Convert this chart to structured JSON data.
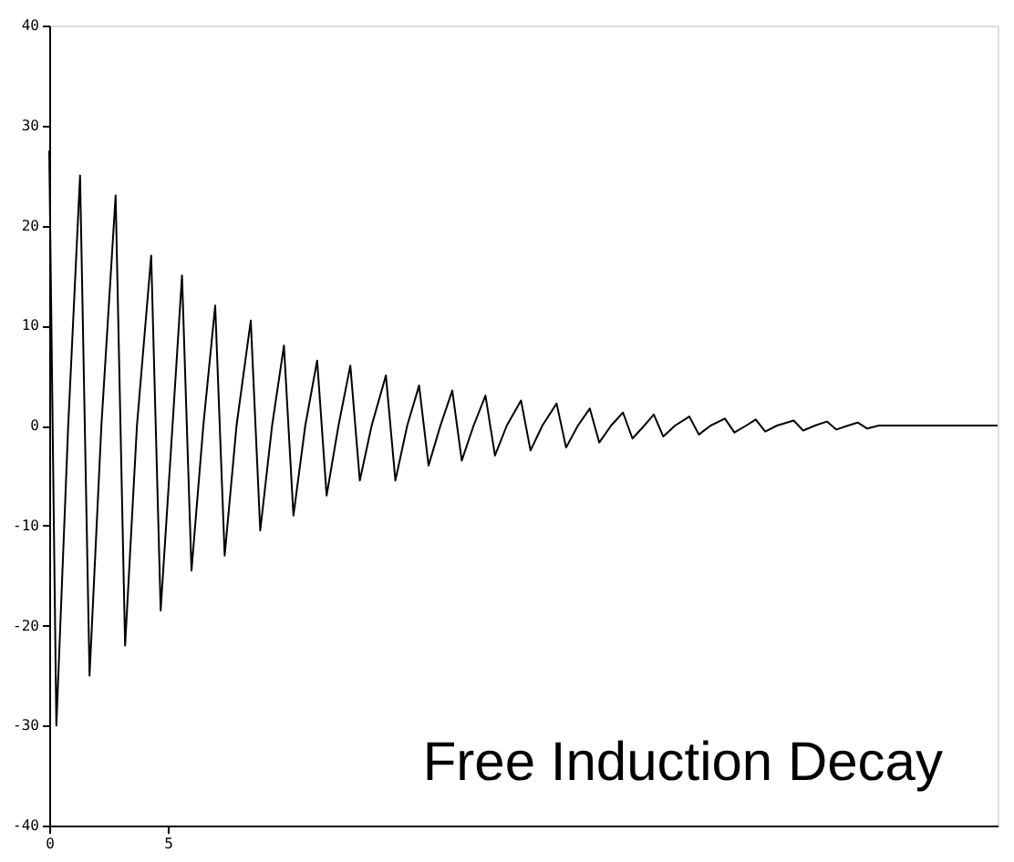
{
  "chart_data": {
    "type": "line",
    "title": "Free Induction Decay",
    "x": [
      0.0,
      0.3,
      0.8,
      1.3,
      1.7,
      2.2,
      2.8,
      3.2,
      3.7,
      4.3,
      4.7,
      5.2,
      5.6,
      6.0,
      6.5,
      7.0,
      7.4,
      7.9,
      8.5,
      8.9,
      9.4,
      9.9,
      10.3,
      10.8,
      11.3,
      11.7,
      12.2,
      12.7,
      13.1,
      13.6,
      14.2,
      14.6,
      15.1,
      15.6,
      16.0,
      16.5,
      17.0,
      17.4,
      17.9,
      18.4,
      18.8,
      19.3,
      19.9,
      20.3,
      20.8,
      21.4,
      21.8,
      22.3,
      22.8,
      23.2,
      23.7,
      24.2,
      24.6,
      25.1,
      25.5,
      25.9,
      26.4,
      27.0,
      27.4,
      27.9,
      28.5,
      28.9,
      29.4,
      29.8,
      30.2,
      30.7,
      31.4,
      31.8,
      32.3,
      32.8,
      33.2,
      33.7,
      34.1,
      34.5,
      35.0,
      40.0
    ],
    "values": [
      27.5,
      -30,
      0,
      25,
      -25,
      0,
      23,
      -22,
      0,
      17,
      -18.5,
      0,
      15,
      -14.5,
      0,
      12,
      -13,
      0,
      10.5,
      -10.5,
      0,
      8,
      -9,
      0,
      6.5,
      -7,
      0,
      6,
      -5.5,
      0,
      5,
      -5.5,
      0,
      4,
      -4,
      0,
      3.5,
      -3.5,
      0,
      3,
      -3,
      0,
      2.5,
      -2.5,
      0,
      2.2,
      -2.2,
      0,
      1.7,
      -1.7,
      0,
      1.3,
      -1.3,
      0,
      1.1,
      -1.1,
      0,
      0.9,
      -0.9,
      0,
      0.7,
      -0.7,
      0,
      0.6,
      -0.6,
      0,
      0.5,
      -0.5,
      0,
      0.4,
      -0.4,
      0,
      0.3,
      -0.3,
      0,
      0
    ],
    "color": "#000000",
    "xlim": [
      0,
      40
    ],
    "xticks": [
      0,
      5
    ],
    "ylim": [
      -40,
      40
    ],
    "yticks": [
      -40,
      -30,
      -20,
      -10,
      0,
      10,
      20,
      30,
      40
    ],
    "grid": false,
    "marker": "none",
    "line_style": "solid"
  }
}
